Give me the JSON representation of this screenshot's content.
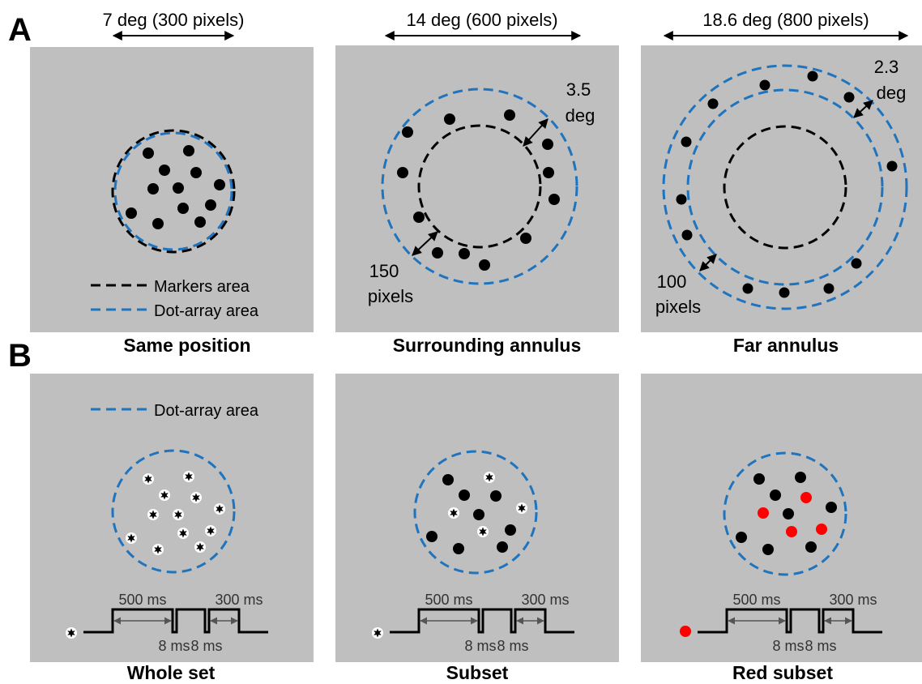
{
  "section_labels": {
    "a": "A",
    "b": "B"
  },
  "row_a": {
    "width_labels": [
      "7 deg (300 pixels)",
      "14 deg (600 pixels)",
      "18.6 deg (800 pixels)"
    ],
    "panel_titles": [
      "Same position",
      "Surrounding annulus",
      "Far annulus"
    ],
    "legend": {
      "markers": "Markers area",
      "dots": "Dot-array area"
    },
    "annotations": {
      "p2_gap_deg": [
        "3.5",
        "deg"
      ],
      "p2_gap_px": [
        "150",
        "pixels"
      ],
      "p3_gap_deg": [
        "2.3",
        "deg"
      ],
      "p3_gap_px": [
        "100",
        "pixels"
      ]
    }
  },
  "row_b": {
    "panel_titles": [
      "Whole set",
      "Subset",
      "Red subset"
    ],
    "legend": {
      "dots": "Dot-array area"
    },
    "timeline": {
      "first": "500 ms",
      "gap": "8 ms",
      "last": "300 ms"
    }
  },
  "colors": {
    "panel_bg": "#bfbfbf",
    "dot_area": "#1f74bd",
    "markers_area": "#000000",
    "dot": "#000000",
    "red_dot": "#ff0000"
  },
  "icons": {
    "arrow": "double-headed-arrow",
    "marker": "star-marker-dot"
  }
}
